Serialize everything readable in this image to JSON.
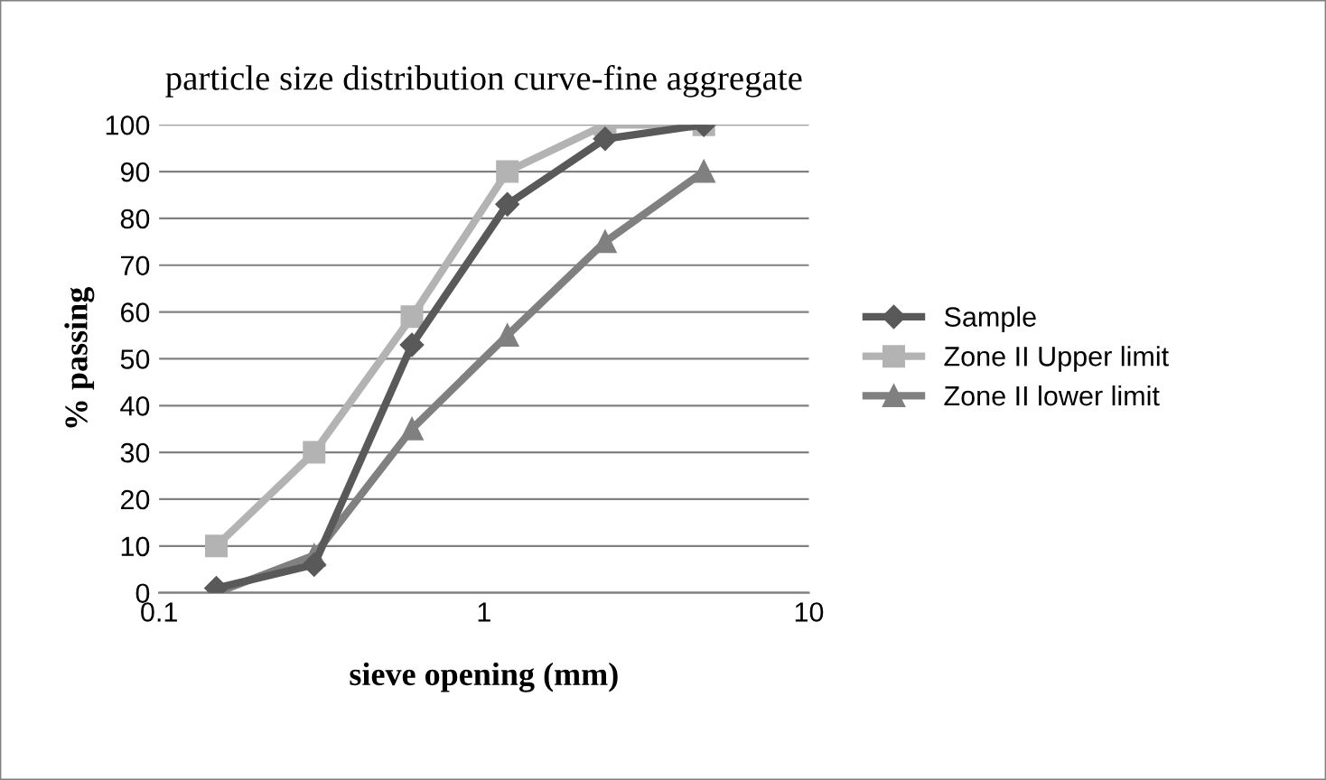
{
  "chart_data": {
    "type": "line",
    "title": "particle size distribution curve-fine aggregate",
    "xlabel": "sieve opening (mm)",
    "ylabel": "% passing",
    "x": [
      0.15,
      0.3,
      0.6,
      1.18,
      2.36,
      4.75
    ],
    "series": [
      {
        "name": "Sample",
        "color": "#595959",
        "marker": "diamond",
        "values": [
          1,
          6,
          53,
          83,
          97,
          100
        ]
      },
      {
        "name": "Zone II Upper limit",
        "color": "#b3b3b3",
        "marker": "square",
        "values": [
          10,
          30,
          59,
          90,
          100,
          100
        ]
      },
      {
        "name": "Zone II lower limit",
        "color": "#808080",
        "marker": "triangle",
        "values": [
          0,
          8,
          35,
          55,
          75,
          90
        ]
      }
    ],
    "log": "x",
    "xlim": [
      0.1,
      10
    ],
    "xticks": [
      0.1,
      1,
      10
    ],
    "ylim": [
      0,
      100
    ],
    "yticks": [
      0,
      10,
      20,
      30,
      40,
      50,
      60,
      70,
      80,
      90,
      100
    ],
    "grid": "y",
    "legend": "right",
    "line_style": "solid"
  }
}
